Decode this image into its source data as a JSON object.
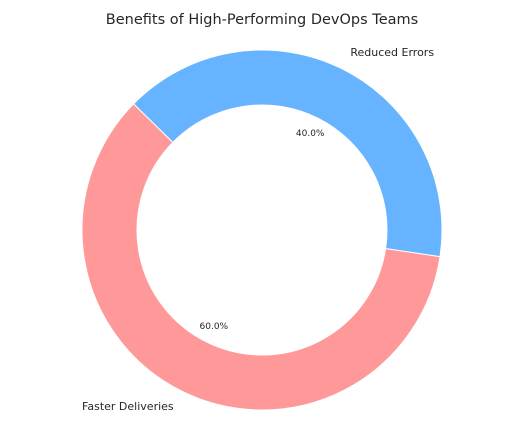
{
  "chart_data": {
    "type": "pie",
    "donut": true,
    "title": "Benefits of High-Performing DevOps Teams",
    "slices": [
      {
        "label": "Faster Deliveries",
        "value": 60.0,
        "pct_label": "60.0%",
        "color": "#ff9999"
      },
      {
        "label": "Reduced Errors",
        "value": 40.0,
        "pct_label": "40.0%",
        "color": "#66b3ff"
      }
    ],
    "edge_color": "#ffffff"
  }
}
